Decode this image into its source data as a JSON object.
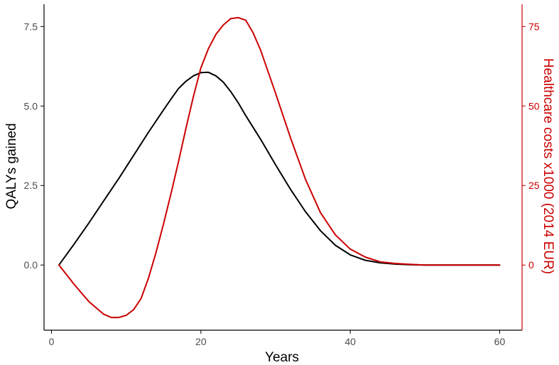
{
  "chart_data": {
    "type": "line",
    "title": "",
    "xlabel": "Years",
    "ylabel": "QALYs gained",
    "y2label": "Healthcare costs x1000 (2014 EUR)",
    "xlim": [
      -1,
      63
    ],
    "ylim": [
      -2.05,
      8.2
    ],
    "y2lim": [
      -20.5,
      82
    ],
    "x_ticks": [
      0,
      20,
      40,
      60
    ],
    "x_tick_labels": [
      "0",
      "20",
      "40",
      "60"
    ],
    "y_ticks": [
      0,
      2.5,
      5,
      7.5
    ],
    "y_tick_labels": [
      "0.0",
      "2.5",
      "5.0",
      "7.5"
    ],
    "y2_ticks": [
      0,
      25,
      50,
      75
    ],
    "y2_tick_labels": [
      "0",
      "25",
      "50",
      "75"
    ],
    "grid": false,
    "legend": "none",
    "colors": {
      "qalys": "#000000",
      "costs": "#cc0000"
    },
    "series": [
      {
        "axis": "left",
        "color": "#000000",
        "x": [
          1,
          3,
          5,
          7,
          9,
          11,
          13,
          15,
          16,
          17,
          18,
          19,
          20,
          21,
          22,
          23,
          24,
          25,
          26,
          28,
          30,
          32,
          34,
          36,
          38,
          40,
          42,
          44,
          46,
          48,
          50,
          55,
          60
        ],
        "values": [
          0,
          0.65,
          1.32,
          2.02,
          2.72,
          3.45,
          4.18,
          4.88,
          5.22,
          5.55,
          5.78,
          5.95,
          6.05,
          6.06,
          5.95,
          5.75,
          5.45,
          5.1,
          4.7,
          3.95,
          3.15,
          2.38,
          1.68,
          1.08,
          0.62,
          0.32,
          0.15,
          0.07,
          0.03,
          0.01,
          0,
          0,
          0
        ]
      },
      {
        "axis": "right",
        "color": "#cc0000",
        "x": [
          1,
          3,
          5,
          7,
          8,
          9,
          10,
          11,
          12,
          13,
          14,
          15,
          16,
          17,
          18,
          19,
          20,
          21,
          22,
          23,
          24,
          25,
          26,
          27,
          28,
          30,
          32,
          34,
          36,
          38,
          40,
          42,
          44,
          46,
          48,
          50,
          55,
          60
        ],
        "values": [
          0,
          -6,
          -11.5,
          -15.5,
          -16.5,
          -16.5,
          -15.8,
          -14,
          -10.5,
          -4,
          4,
          13,
          22.5,
          32.5,
          43,
          53,
          62,
          68,
          72.5,
          75.5,
          77.5,
          77.8,
          77,
          73,
          67.5,
          54,
          40,
          27,
          16.5,
          9.5,
          5,
          2.5,
          1,
          0.5,
          0.2,
          0,
          0,
          0
        ]
      }
    ]
  }
}
